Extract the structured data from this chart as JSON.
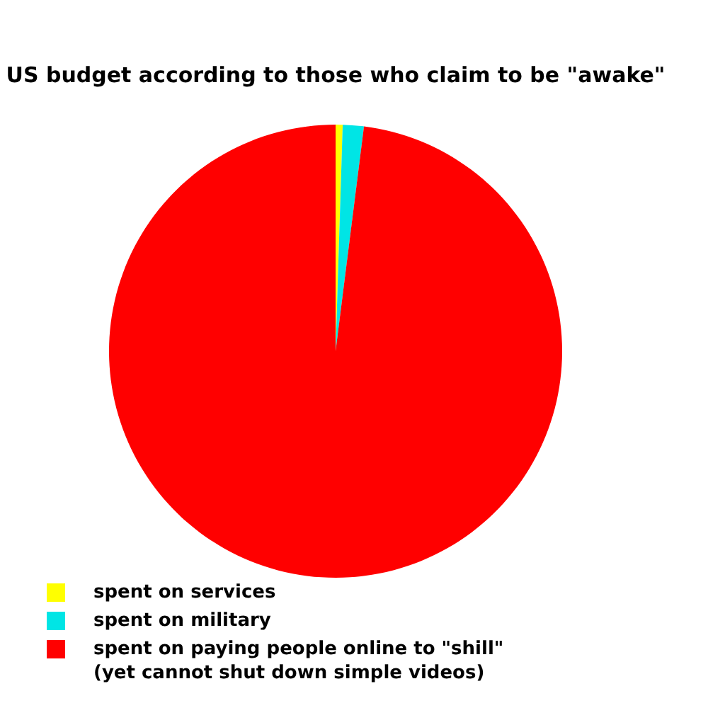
{
  "chart_data": {
    "type": "pie",
    "title": "US budget according to those who claim to be \"awake\"",
    "categories": [
      "spent on services",
      "spent on military",
      "spent on paying people online to \"shill\"\n(yet cannot shut down simple videos)"
    ],
    "values": [
      0.5,
      1.5,
      98
    ],
    "colors": [
      "#ffff00",
      "#00e5e5",
      "#ff0000"
    ],
    "legend": "bottom left"
  }
}
